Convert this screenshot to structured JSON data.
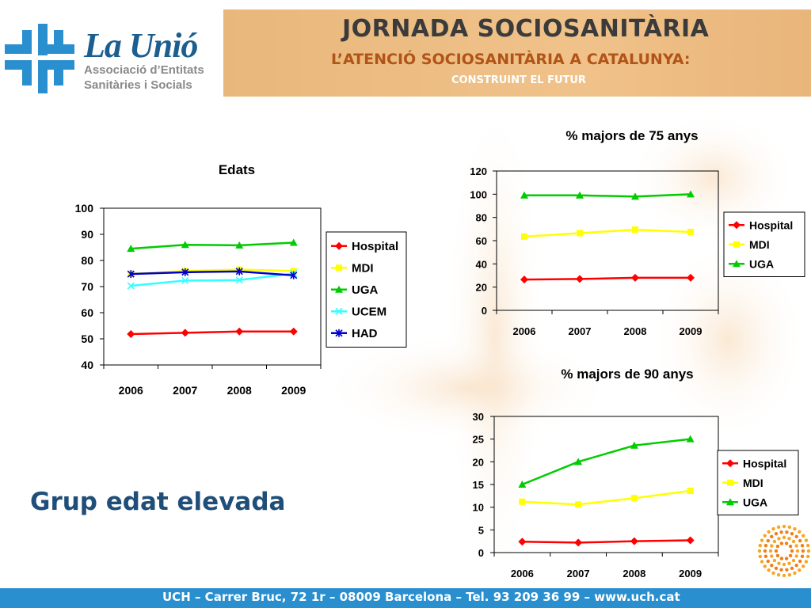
{
  "header": {
    "logo_name": "La Unió",
    "logo_sub1": "Associació d’Entitats",
    "logo_sub2": "Sanitàries i Socials",
    "title": "JORNADA SOCIOSANITÀRIA",
    "subtitle": "L’ATENCIÓ SOCIOSANITÀRIA A CATALUNYA:",
    "tagline": "CONSTRUINT EL FUTUR"
  },
  "caption": "Grup edat elevada",
  "footer": {
    "text": "UCH – Carrer Bruc, 72 1r – 08009 Barcelona – Tel. 93 209 36 99 – www.uch.cat"
  },
  "colors": {
    "Hospital": "#ff0000",
    "MDI": "#ffff00",
    "UGA": "#00cc00",
    "UCEM": "#33ffff",
    "HAD": "#0000cc",
    "footer": "#2a8fcf",
    "header_band": "#f0c28a"
  },
  "chart_data": [
    {
      "type": "line",
      "title": "Edats",
      "x": [
        "2006",
        "2007",
        "2008",
        "2009"
      ],
      "ylim": [
        40,
        100
      ],
      "yticks": [
        "40",
        "50",
        "60",
        "70",
        "80",
        "90",
        "100"
      ],
      "legend": "right",
      "series": [
        {
          "name": "Hospital",
          "marker": "diamond",
          "values": [
            51.8,
            52.3,
            52.8,
            52.8
          ]
        },
        {
          "name": "MDI",
          "marker": "square",
          "values": [
            74.8,
            76.0,
            76.5,
            76.0
          ]
        },
        {
          "name": "UGA",
          "marker": "triangle",
          "values": [
            84.5,
            86.0,
            85.8,
            86.8
          ]
        },
        {
          "name": "UCEM",
          "marker": "x",
          "values": [
            70.3,
            72.3,
            72.5,
            75.0
          ]
        },
        {
          "name": "HAD",
          "marker": "star",
          "values": [
            74.8,
            75.5,
            75.8,
            74.3
          ]
        }
      ]
    },
    {
      "type": "line",
      "title": "% majors de 75 anys",
      "x": [
        "2006",
        "2007",
        "2008",
        "2009"
      ],
      "ylim": [
        0,
        120
      ],
      "yticks": [
        "0",
        "20",
        "40",
        "60",
        "80",
        "100",
        "120"
      ],
      "legend": "right",
      "series": [
        {
          "name": "Hospital",
          "marker": "diamond",
          "values": [
            26.5,
            27.0,
            28.0,
            28.0
          ]
        },
        {
          "name": "MDI",
          "marker": "square",
          "values": [
            63.5,
            66.5,
            69.5,
            67.5
          ]
        },
        {
          "name": "UGA",
          "marker": "triangle",
          "values": [
            99.0,
            99.0,
            98.0,
            100.0
          ]
        }
      ]
    },
    {
      "type": "line",
      "title": "% majors de 90 anys",
      "x": [
        "2006",
        "2007",
        "2008",
        "2009"
      ],
      "ylim": [
        0,
        30
      ],
      "yticks": [
        "0",
        "5",
        "10",
        "15",
        "20",
        "25",
        "30"
      ],
      "legend": "right",
      "series": [
        {
          "name": "Hospital",
          "marker": "diamond",
          "values": [
            2.4,
            2.2,
            2.5,
            2.7
          ]
        },
        {
          "name": "MDI",
          "marker": "square",
          "values": [
            11.2,
            10.6,
            12.0,
            13.6
          ]
        },
        {
          "name": "UGA",
          "marker": "triangle",
          "values": [
            15.0,
            20.0,
            23.6,
            25.0
          ]
        }
      ]
    }
  ]
}
